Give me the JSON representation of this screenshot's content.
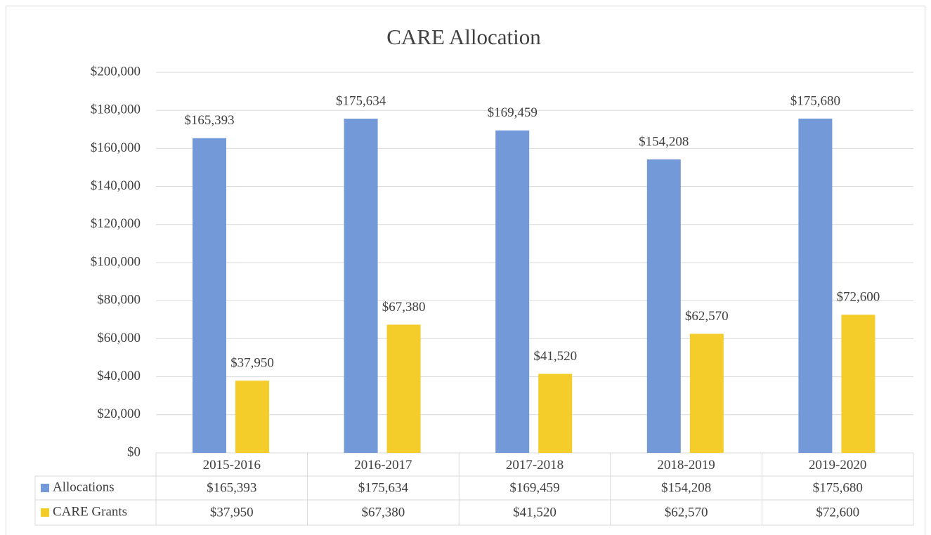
{
  "chart_data": {
    "type": "bar",
    "title": "CARE Allocation",
    "categories": [
      "2015-2016",
      "2016-2017",
      "2017-2018",
      "2018-2019",
      "2019-2020"
    ],
    "series": [
      {
        "name": "Allocations",
        "color": "#7499d8",
        "values": [
          165393,
          175634,
          169459,
          154208,
          175680
        ],
        "value_labels": [
          "$165,393",
          "$175,634",
          "$169,459",
          "$154,208",
          "$175,680"
        ]
      },
      {
        "name": "CARE Grants",
        "color": "#f4cd2a",
        "values": [
          37950,
          67380,
          41520,
          62570,
          72600
        ],
        "value_labels": [
          "$37,950",
          "$67,380",
          "$41,520",
          "$62,570",
          "$72,600"
        ]
      }
    ],
    "ylim": [
      0,
      200000
    ],
    "yticks": [
      {
        "value": 0,
        "label": "$0"
      },
      {
        "value": 20000,
        "label": "$20,000"
      },
      {
        "value": 40000,
        "label": "$40,000"
      },
      {
        "value": 60000,
        "label": "$60,000"
      },
      {
        "value": 80000,
        "label": "$80,000"
      },
      {
        "value": 100000,
        "label": "$100,000"
      },
      {
        "value": 120000,
        "label": "$120,000"
      },
      {
        "value": 140000,
        "label": "$140,000"
      },
      {
        "value": 160000,
        "label": "$160,000"
      },
      {
        "value": 180000,
        "label": "$180,000"
      },
      {
        "value": 200000,
        "label": "$200,000"
      }
    ],
    "grid": true,
    "data_table": true
  }
}
